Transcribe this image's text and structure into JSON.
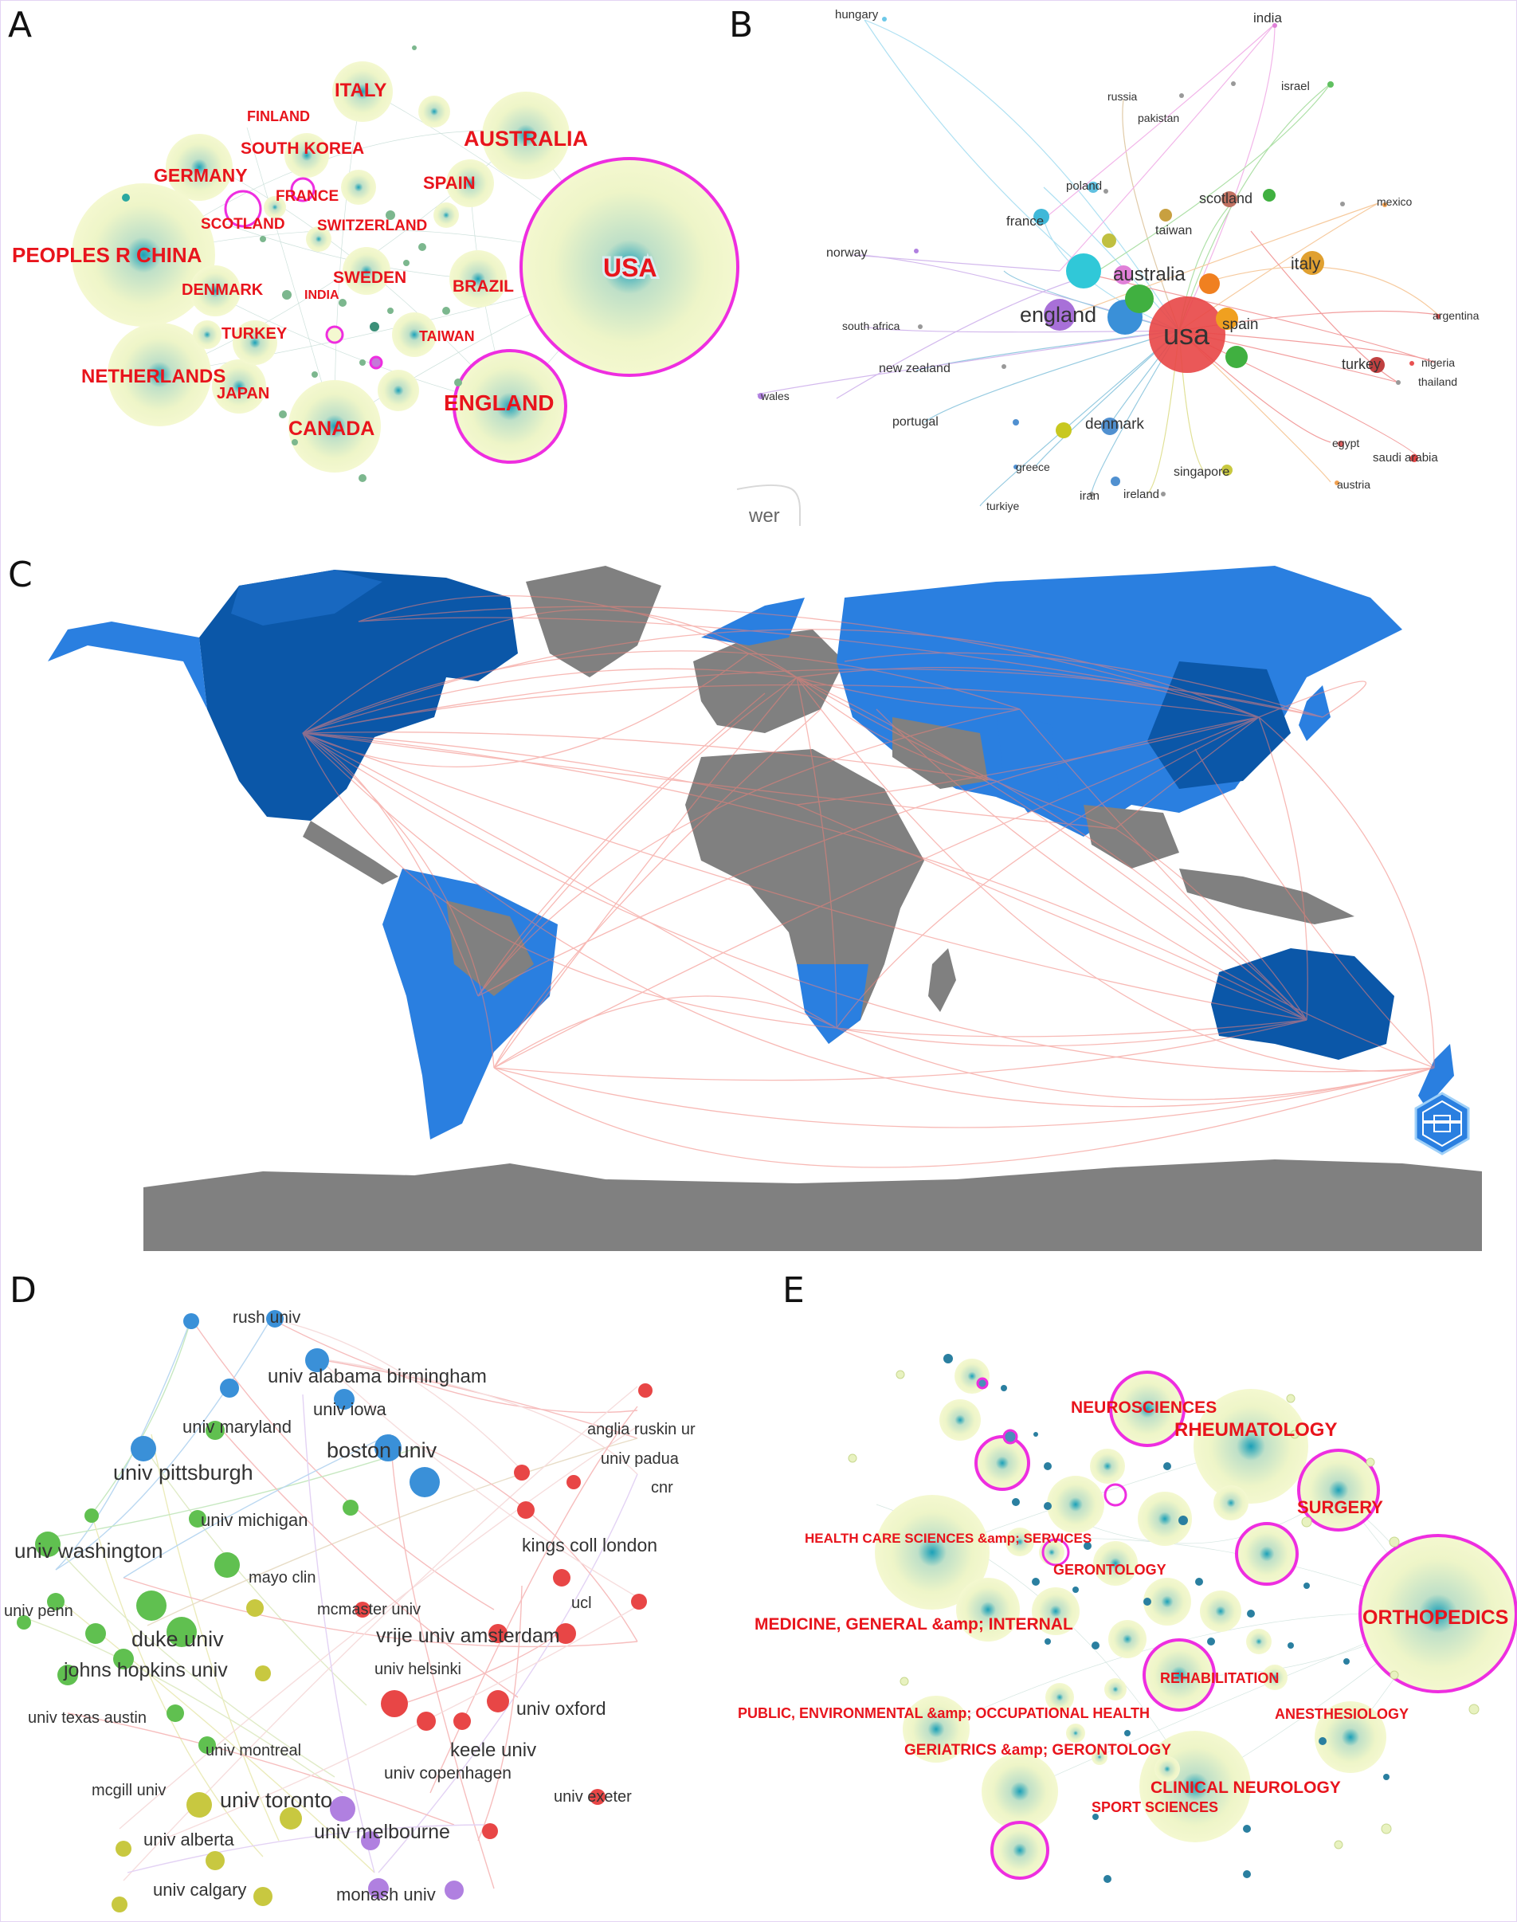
{
  "panels": {
    "a": {
      "letter": "A",
      "labels": [
        "ITALY",
        "FINLAND",
        "AUSTRALIA",
        "SOUTH KOREA",
        "GERMANY",
        "SPAIN",
        "FRANCE",
        "SCOTLAND",
        "SWITZERLAND",
        "PEOPLES R CHINA",
        "USA",
        "SWEDEN",
        "DENMARK",
        "INDIA",
        "BRAZIL",
        "TURKEY",
        "TAIWAN",
        "NETHERLANDS",
        "JAPAN",
        "ENGLAND",
        "CANADA"
      ]
    },
    "b": {
      "letter": "B",
      "labels": [
        "hungary",
        "india",
        "russia",
        "israel",
        "pakistan",
        "poland",
        "scotland",
        "mexico",
        "france",
        "taiwan",
        "norway",
        "australia",
        "italy",
        "england",
        "usa",
        "spain",
        "argentina",
        "south africa",
        "nigeria",
        "turkey",
        "new zealand",
        "thailand",
        "wales",
        "portugal",
        "denmark",
        "egypt",
        "saudi arabia",
        "singapore",
        "greece",
        "austria",
        "iran",
        "ireland",
        "turkiye"
      ],
      "partial_text": "wer"
    },
    "c": {
      "letter": "C",
      "colors": {
        "ocean": "#ffffff",
        "land_low": "#808080",
        "land_mid": "#2a7fe0",
        "land_high": "#0b57a8",
        "links": "#f28079"
      },
      "logo_icon": "bibliometrix-logo-icon"
    },
    "d": {
      "letter": "D",
      "labels": [
        "rush univ",
        "univ alabama birmingham",
        "univ iowa",
        "univ maryland",
        "anglia ruskin ur",
        "boston univ",
        "univ padua",
        "univ pittsburgh",
        "cnr",
        "univ michigan",
        "kings coll london",
        "univ washington",
        "mayo clin",
        "mcmaster univ",
        "univ penn",
        "ucl",
        "vrije univ amsterdam",
        "duke univ",
        "johns hopkins univ",
        "univ helsinki",
        "univ oxford",
        "univ texas austin",
        "univ montreal",
        "keele univ",
        "univ copenhagen",
        "mcgill univ",
        "univ exeter",
        "univ toronto",
        "univ alberta",
        "univ melbourne",
        "univ calgary",
        "monash univ"
      ]
    },
    "e": {
      "letter": "E",
      "labels": [
        "NEUROSCIENCES",
        "RHEUMATOLOGY",
        "SURGERY",
        "HEALTH CARE SCIENCES &amp; SERVICES",
        "GERONTOLOGY",
        "ORTHOPEDICS",
        "MEDICINE, GENERAL &amp; INTERNAL",
        "REHABILITATION",
        "PUBLIC, ENVIRONMENTAL &amp; OCCUPATIONAL HEALTH",
        "ANESTHESIOLOGY",
        "GERIATRICS &amp; GERONTOLOGY",
        "CLINICAL NEUROLOGY",
        "SPORT SCIENCES"
      ]
    }
  }
}
